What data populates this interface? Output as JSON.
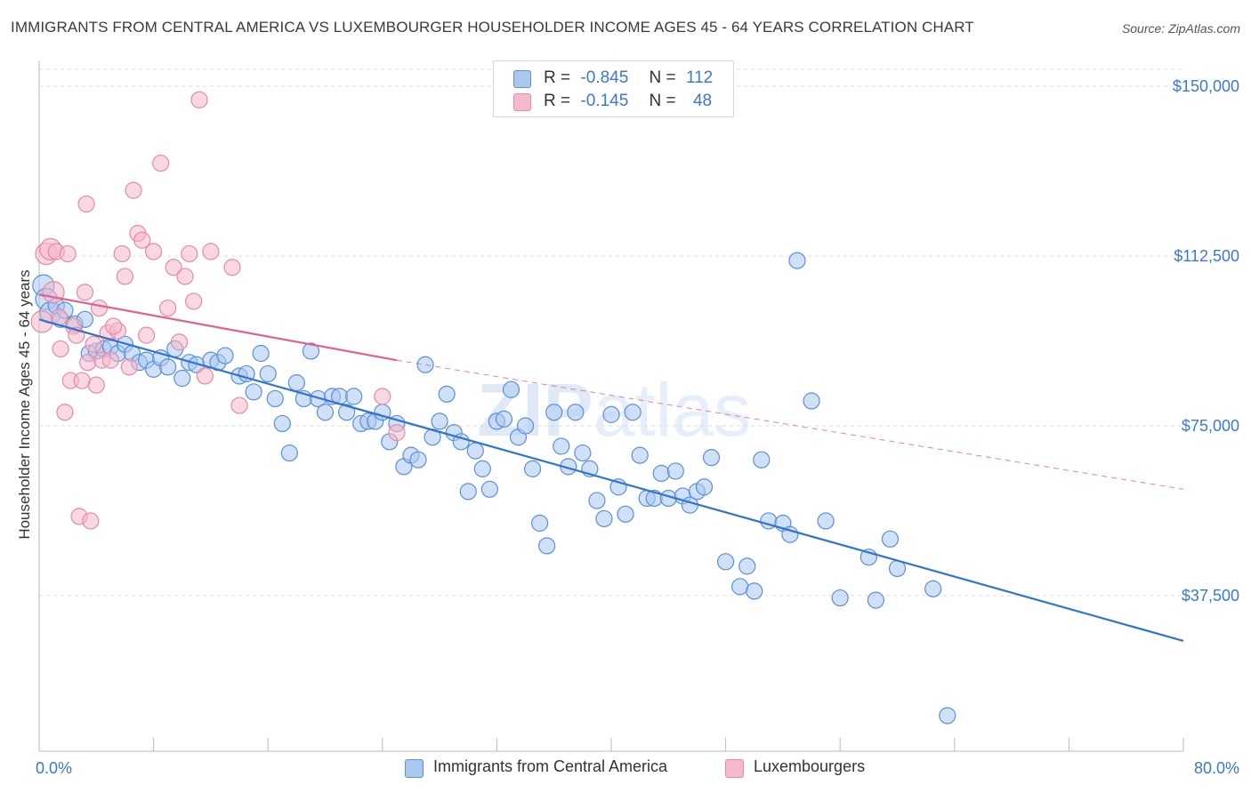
{
  "title": "IMMIGRANTS FROM CENTRAL AMERICA VS LUXEMBOURGER HOUSEHOLDER INCOME AGES 45 - 64 YEARS CORRELATION CHART",
  "source": "Source: ZipAtlas.com",
  "watermark": "ZIPatlas",
  "legend": {
    "rows": [
      {
        "r_label": "R =",
        "r_value": "-0.845",
        "n_label": "N =",
        "n_value": "112",
        "color": "#a9c8f0"
      },
      {
        "r_label": "R =",
        "r_value": "-0.145",
        "n_label": "N =",
        "n_value": "48",
        "color": "#f6b8cb"
      }
    ]
  },
  "bottom_legend": [
    {
      "label": "Immigrants from Central America",
      "color": "#a9c8f0"
    },
    {
      "label": "Luxembourgers",
      "color": "#f6b8cb"
    }
  ],
  "chart_data": {
    "type": "scatter",
    "title": "IMMIGRANTS FROM CENTRAL AMERICA VS LUXEMBOURGER HOUSEHOLDER INCOME AGES 45 - 64 YEARS CORRELATION CHART",
    "xlabel": "",
    "ylabel": "Householder Income Ages 45 - 64 years",
    "xlim": [
      0,
      80
    ],
    "ylim": [
      0,
      160000
    ],
    "x_tick_labels": [
      {
        "value": 0,
        "label": "0.0%"
      },
      {
        "value": 80,
        "label": "80.0%"
      }
    ],
    "y_ticks": [
      {
        "value": 37500,
        "label": "$37,500"
      },
      {
        "value": 75000,
        "label": "$75,000"
      },
      {
        "value": 112500,
        "label": "$112,500"
      },
      {
        "value": 150000,
        "label": "$150,000"
      }
    ],
    "grid": "horizontal dashed",
    "legend_position": "top-center",
    "series": [
      {
        "name": "Immigrants from Central America",
        "color": "#5b8fd9",
        "fill": "#a9c8f0",
        "trend": {
          "x": [
            0,
            80
          ],
          "y": [
            98500,
            27500
          ],
          "style": "solid",
          "color": "#2f74d0"
        },
        "points": [
          [
            0.3,
            106000
          ],
          [
            0.5,
            103000
          ],
          [
            0.8,
            100000
          ],
          [
            1.2,
            101500
          ],
          [
            1.5,
            98500
          ],
          [
            1.8,
            100500
          ],
          [
            2.5,
            97500
          ],
          [
            3.2,
            98500
          ],
          [
            3.5,
            91000
          ],
          [
            4.0,
            91500
          ],
          [
            4.5,
            92000
          ],
          [
            5.0,
            92500
          ],
          [
            5.5,
            91000
          ],
          [
            6.0,
            93000
          ],
          [
            6.5,
            91000
          ],
          [
            7.0,
            89000
          ],
          [
            7.5,
            89500
          ],
          [
            8.0,
            87500
          ],
          [
            8.5,
            90000
          ],
          [
            9.0,
            88000
          ],
          [
            10.0,
            85500
          ],
          [
            10.5,
            89000
          ],
          [
            11.0,
            88500
          ],
          [
            12.0,
            89500
          ],
          [
            12.5,
            89000
          ],
          [
            13.0,
            90500
          ],
          [
            14.0,
            86000
          ],
          [
            14.5,
            86500
          ],
          [
            15.0,
            82500
          ],
          [
            15.5,
            91000
          ],
          [
            16.0,
            86500
          ],
          [
            16.5,
            81000
          ],
          [
            17.0,
            75500
          ],
          [
            17.5,
            69000
          ],
          [
            18.0,
            84500
          ],
          [
            18.5,
            81000
          ],
          [
            19.0,
            91500
          ],
          [
            19.5,
            81000
          ],
          [
            20.0,
            78000
          ],
          [
            20.5,
            81500
          ],
          [
            21.0,
            81500
          ],
          [
            21.5,
            78000
          ],
          [
            22.0,
            81500
          ],
          [
            22.5,
            75500
          ],
          [
            23.0,
            76000
          ],
          [
            23.5,
            76000
          ],
          [
            24.0,
            78000
          ],
          [
            24.5,
            71500
          ],
          [
            25.0,
            75500
          ],
          [
            25.5,
            66000
          ],
          [
            26.0,
            68500
          ],
          [
            26.5,
            67500
          ],
          [
            27.0,
            88500
          ],
          [
            27.5,
            72500
          ],
          [
            28.0,
            76000
          ],
          [
            28.5,
            82000
          ],
          [
            29.0,
            73500
          ],
          [
            29.5,
            71500
          ],
          [
            30.0,
            60500
          ],
          [
            30.5,
            69500
          ],
          [
            31.0,
            65500
          ],
          [
            31.5,
            61000
          ],
          [
            32.0,
            76000
          ],
          [
            32.5,
            76500
          ],
          [
            33.0,
            83000
          ],
          [
            33.5,
            72500
          ],
          [
            34.0,
            75000
          ],
          [
            34.5,
            65500
          ],
          [
            35.0,
            53500
          ],
          [
            35.5,
            48500
          ],
          [
            36.0,
            78000
          ],
          [
            36.5,
            70500
          ],
          [
            37.0,
            66000
          ],
          [
            37.5,
            78000
          ],
          [
            38.0,
            69000
          ],
          [
            38.5,
            65500
          ],
          [
            39.0,
            58500
          ],
          [
            39.5,
            54500
          ],
          [
            40.0,
            77500
          ],
          [
            40.5,
            61500
          ],
          [
            41.0,
            55500
          ],
          [
            41.5,
            78000
          ],
          [
            42.0,
            68500
          ],
          [
            42.5,
            59000
          ],
          [
            43.0,
            59000
          ],
          [
            43.5,
            64500
          ],
          [
            44.0,
            59000
          ],
          [
            44.5,
            65000
          ],
          [
            45.0,
            59500
          ],
          [
            45.5,
            57500
          ],
          [
            46.0,
            60500
          ],
          [
            46.5,
            61500
          ],
          [
            47.0,
            68000
          ],
          [
            48.0,
            45000
          ],
          [
            49.0,
            39500
          ],
          [
            49.5,
            44000
          ],
          [
            50.0,
            38500
          ],
          [
            50.5,
            67500
          ],
          [
            51.0,
            54000
          ],
          [
            52.0,
            53500
          ],
          [
            52.5,
            51000
          ],
          [
            53.0,
            111500
          ],
          [
            54.0,
            80500
          ],
          [
            55.0,
            54000
          ],
          [
            56.0,
            37000
          ],
          [
            58.0,
            46000
          ],
          [
            58.5,
            36500
          ],
          [
            59.5,
            50000
          ],
          [
            60.0,
            43500
          ],
          [
            62.5,
            39000
          ],
          [
            63.5,
            11000
          ],
          [
            9.5,
            92000
          ]
        ]
      },
      {
        "name": "Luxembourgers",
        "color": "#e58aa8",
        "fill": "#f6b8cb",
        "trend": {
          "x": [
            0,
            25
          ],
          "y": [
            104000,
            89500
          ],
          "style": "solid",
          "color": "#e0618f",
          "extended": {
            "x": [
              25,
              80
            ],
            "y": [
              89500,
              61000
            ],
            "style": "dashed"
          }
        },
        "points": [
          [
            0.2,
            98000
          ],
          [
            0.5,
            113000
          ],
          [
            0.8,
            114000
          ],
          [
            1.0,
            104500
          ],
          [
            1.2,
            113500
          ],
          [
            1.5,
            92000
          ],
          [
            1.8,
            78000
          ],
          [
            2.0,
            113000
          ],
          [
            2.2,
            85000
          ],
          [
            2.4,
            97000
          ],
          [
            2.6,
            95000
          ],
          [
            2.8,
            55000
          ],
          [
            3.0,
            85000
          ],
          [
            3.2,
            104500
          ],
          [
            3.4,
            89000
          ],
          [
            3.6,
            54000
          ],
          [
            3.8,
            93000
          ],
          [
            4.0,
            84000
          ],
          [
            4.2,
            101000
          ],
          [
            4.4,
            89500
          ],
          [
            4.8,
            95500
          ],
          [
            5.0,
            89500
          ],
          [
            5.5,
            96000
          ],
          [
            5.8,
            113000
          ],
          [
            6.0,
            108000
          ],
          [
            6.3,
            88000
          ],
          [
            6.6,
            127000
          ],
          [
            6.9,
            117500
          ],
          [
            7.2,
            116000
          ],
          [
            7.5,
            95000
          ],
          [
            8.0,
            113500
          ],
          [
            8.5,
            133000
          ],
          [
            9.0,
            101000
          ],
          [
            9.4,
            110000
          ],
          [
            9.8,
            93500
          ],
          [
            10.2,
            108000
          ],
          [
            10.5,
            113000
          ],
          [
            10.8,
            102500
          ],
          [
            11.2,
            147000
          ],
          [
            11.6,
            86000
          ],
          [
            12.0,
            113500
          ],
          [
            13.5,
            110000
          ],
          [
            14.0,
            79500
          ],
          [
            24.0,
            81500
          ],
          [
            25.0,
            73500
          ],
          [
            1.4,
            99000
          ],
          [
            3.3,
            124000
          ],
          [
            5.2,
            97000
          ]
        ]
      }
    ]
  }
}
